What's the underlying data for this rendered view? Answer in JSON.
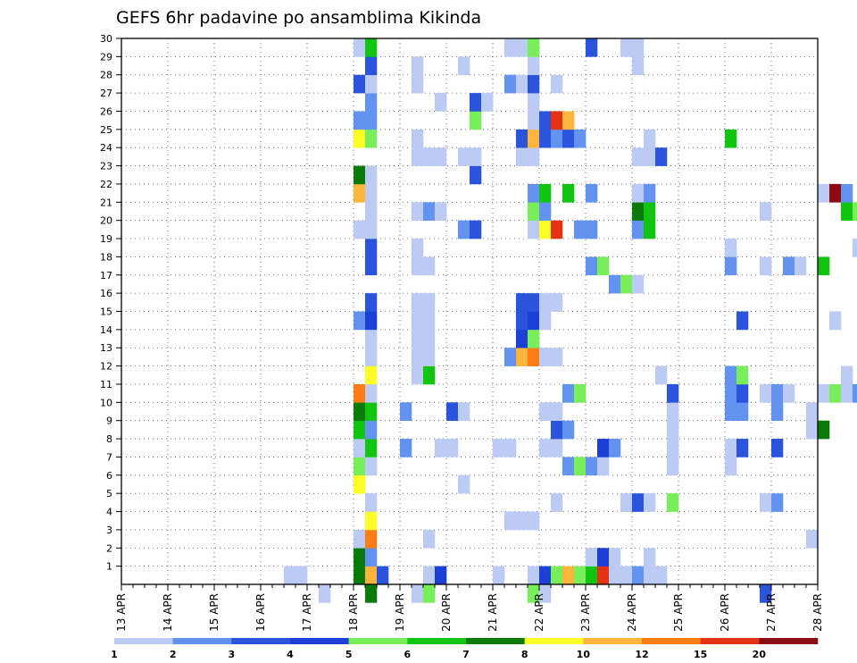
{
  "chart_data": {
    "type": "heatmap",
    "title": "GEFS 6hr padavine po ansamblima Kikinda",
    "x_tick_labels": [
      "13 APR",
      "14 APR",
      "15 APR",
      "16 APR",
      "17 APR",
      "18 APR",
      "19 APR",
      "20 APR",
      "21 APR",
      "22 APR",
      "23 APR",
      "24 APR",
      "25 APR",
      "26 APR",
      "27 APR",
      "28 APR"
    ],
    "y_tick_labels": [
      "1",
      "2",
      "3",
      "4",
      "5",
      "6",
      "7",
      "8",
      "9",
      "10",
      "11",
      "12",
      "13",
      "14",
      "15",
      "16",
      "17",
      "18",
      "19",
      "20",
      "21",
      "22",
      "23",
      "24",
      "25",
      "26",
      "27",
      "28",
      "29",
      "30"
    ],
    "x_range": [
      "13 APR 00",
      "28 APR 00"
    ],
    "time_step_hours": 6,
    "y_range": [
      0,
      30
    ],
    "grid": "dotted",
    "colorbar": {
      "position": "bottom",
      "tick_labels": [
        "1",
        "2",
        "3",
        "4",
        "5",
        "6",
        "7",
        "8",
        "10",
        "12",
        "15",
        "20"
      ],
      "colors": [
        "#bccbf4",
        "#6393f0",
        "#2a54dc",
        "#1c3fd6",
        "#77ee5a",
        "#10c410",
        "#0a7a0a",
        "#ffff28",
        "#ffb43c",
        "#ff7d14",
        "#e63214",
        "#8c0a14"
      ]
    },
    "cells_note": "member, time step index (6-hourly from 13 APR 00), color class index into colorbar.colors",
    "cells": [
      [
        1,
        14,
        0
      ],
      [
        1,
        15,
        0
      ],
      [
        1,
        20,
        6
      ],
      [
        1,
        21,
        8
      ],
      [
        1,
        22,
        2
      ],
      [
        1,
        26,
        0
      ],
      [
        1,
        27,
        3
      ],
      [
        1,
        32,
        0
      ],
      [
        1,
        35,
        0
      ],
      [
        1,
        36,
        3
      ],
      [
        1,
        37,
        4
      ],
      [
        1,
        38,
        8
      ],
      [
        1,
        39,
        4
      ],
      [
        1,
        40,
        5
      ],
      [
        1,
        41,
        10
      ],
      [
        1,
        42,
        0
      ],
      [
        1,
        43,
        0
      ],
      [
        1,
        44,
        1
      ],
      [
        1,
        45,
        0
      ],
      [
        1,
        46,
        0
      ],
      [
        2,
        20,
        6
      ],
      [
        2,
        21,
        1
      ],
      [
        2,
        40,
        0
      ],
      [
        2,
        41,
        3
      ],
      [
        2,
        42,
        0
      ],
      [
        2,
        45,
        0
      ],
      [
        3,
        20,
        0
      ],
      [
        3,
        21,
        9
      ],
      [
        3,
        26,
        0
      ],
      [
        3,
        59,
        0
      ],
      [
        4,
        21,
        7
      ],
      [
        4,
        33,
        0
      ],
      [
        4,
        34,
        0
      ],
      [
        4,
        35,
        0
      ],
      [
        5,
        21,
        0
      ],
      [
        5,
        37,
        0
      ],
      [
        5,
        43,
        0
      ],
      [
        5,
        44,
        2
      ],
      [
        5,
        45,
        0
      ],
      [
        5,
        47,
        4
      ],
      [
        5,
        55,
        0
      ],
      [
        5,
        56,
        1
      ],
      [
        5,
        65,
        2
      ],
      [
        6,
        20,
        7
      ],
      [
        6,
        29,
        0
      ],
      [
        7,
        20,
        4
      ],
      [
        7,
        21,
        0
      ],
      [
        7,
        38,
        1
      ],
      [
        7,
        39,
        4
      ],
      [
        7,
        40,
        1
      ],
      [
        7,
        41,
        0
      ],
      [
        7,
        47,
        0
      ],
      [
        7,
        52,
        0
      ],
      [
        7,
        66,
        6
      ],
      [
        7,
        67,
        9
      ],
      [
        7,
        68,
        4
      ],
      [
        8,
        20,
        0
      ],
      [
        8,
        21,
        5
      ],
      [
        8,
        24,
        1
      ],
      [
        8,
        27,
        0
      ],
      [
        8,
        28,
        0
      ],
      [
        8,
        32,
        0
      ],
      [
        8,
        33,
        0
      ],
      [
        8,
        36,
        0
      ],
      [
        8,
        37,
        0
      ],
      [
        8,
        41,
        3
      ],
      [
        8,
        42,
        1
      ],
      [
        8,
        47,
        0
      ],
      [
        8,
        52,
        0
      ],
      [
        8,
        53,
        2
      ],
      [
        8,
        56,
        2
      ],
      [
        8,
        65,
        4
      ],
      [
        9,
        20,
        5
      ],
      [
        9,
        21,
        1
      ],
      [
        9,
        37,
        2
      ],
      [
        9,
        38,
        1
      ],
      [
        9,
        47,
        0
      ],
      [
        9,
        59,
        0
      ],
      [
        9,
        60,
        6
      ],
      [
        10,
        20,
        6
      ],
      [
        10,
        21,
        5
      ],
      [
        10,
        24,
        1
      ],
      [
        10,
        28,
        2
      ],
      [
        10,
        29,
        0
      ],
      [
        10,
        36,
        0
      ],
      [
        10,
        37,
        0
      ],
      [
        10,
        47,
        0
      ],
      [
        10,
        52,
        1
      ],
      [
        10,
        53,
        1
      ],
      [
        10,
        56,
        1
      ],
      [
        10,
        59,
        0
      ],
      [
        11,
        20,
        9
      ],
      [
        11,
        21,
        0
      ],
      [
        11,
        38,
        1
      ],
      [
        11,
        39,
        4
      ],
      [
        11,
        47,
        2
      ],
      [
        11,
        52,
        1
      ],
      [
        11,
        53,
        2
      ],
      [
        11,
        55,
        0
      ],
      [
        11,
        56,
        1
      ],
      [
        11,
        57,
        0
      ],
      [
        11,
        60,
        0
      ],
      [
        11,
        61,
        4
      ],
      [
        11,
        62,
        0
      ],
      [
        11,
        63,
        1
      ],
      [
        11,
        64,
        5
      ],
      [
        11,
        67,
        1
      ],
      [
        11,
        70,
        4
      ],
      [
        12,
        21,
        7
      ],
      [
        12,
        25,
        0
      ],
      [
        12,
        26,
        5
      ],
      [
        12,
        46,
        0
      ],
      [
        12,
        52,
        1
      ],
      [
        12,
        53,
        4
      ],
      [
        12,
        62,
        0
      ],
      [
        12,
        64,
        2
      ],
      [
        12,
        65,
        2
      ],
      [
        12,
        66,
        0
      ],
      [
        12,
        67,
        1
      ],
      [
        12,
        68,
        0
      ],
      [
        12,
        70,
        1
      ],
      [
        12,
        71,
        4
      ],
      [
        13,
        21,
        0
      ],
      [
        13,
        25,
        0
      ],
      [
        13,
        26,
        0
      ],
      [
        13,
        33,
        1
      ],
      [
        13,
        34,
        8
      ],
      [
        13,
        35,
        9
      ],
      [
        13,
        36,
        0
      ],
      [
        13,
        37,
        0
      ],
      [
        14,
        21,
        0
      ],
      [
        14,
        25,
        0
      ],
      [
        14,
        26,
        0
      ],
      [
        14,
        34,
        3
      ],
      [
        14,
        35,
        4
      ],
      [
        15,
        20,
        1
      ],
      [
        15,
        21,
        3
      ],
      [
        15,
        25,
        0
      ],
      [
        15,
        26,
        0
      ],
      [
        15,
        34,
        2
      ],
      [
        15,
        35,
        3
      ],
      [
        15,
        36,
        0
      ],
      [
        15,
        53,
        2
      ],
      [
        15,
        61,
        0
      ],
      [
        15,
        67,
        1
      ],
      [
        15,
        68,
        1
      ],
      [
        16,
        21,
        2
      ],
      [
        16,
        25,
        0
      ],
      [
        16,
        26,
        0
      ],
      [
        16,
        34,
        2
      ],
      [
        16,
        35,
        2
      ],
      [
        16,
        36,
        0
      ],
      [
        16,
        37,
        0
      ],
      [
        16,
        72,
        9
      ],
      [
        17,
        42,
        1
      ],
      [
        17,
        43,
        4
      ],
      [
        17,
        44,
        0
      ],
      [
        17,
        71,
        0
      ],
      [
        18,
        21,
        2
      ],
      [
        18,
        25,
        0
      ],
      [
        18,
        26,
        0
      ],
      [
        18,
        40,
        1
      ],
      [
        18,
        41,
        4
      ],
      [
        18,
        52,
        1
      ],
      [
        18,
        55,
        0
      ],
      [
        18,
        57,
        1
      ],
      [
        18,
        58,
        0
      ],
      [
        18,
        60,
        5
      ],
      [
        18,
        67,
        0
      ],
      [
        19,
        21,
        2
      ],
      [
        19,
        25,
        0
      ],
      [
        19,
        52,
        0
      ],
      [
        19,
        63,
        0
      ],
      [
        19,
        64,
        2
      ],
      [
        19,
        66,
        1
      ],
      [
        19,
        68,
        10
      ],
      [
        20,
        20,
        0
      ],
      [
        20,
        21,
        0
      ],
      [
        20,
        29,
        1
      ],
      [
        20,
        30,
        2
      ],
      [
        20,
        35,
        0
      ],
      [
        20,
        36,
        7
      ],
      [
        20,
        37,
        10
      ],
      [
        20,
        39,
        1
      ],
      [
        20,
        40,
        1
      ],
      [
        20,
        44,
        1
      ],
      [
        20,
        45,
        5
      ],
      [
        21,
        21,
        0
      ],
      [
        21,
        25,
        0
      ],
      [
        21,
        26,
        1
      ],
      [
        21,
        27,
        0
      ],
      [
        21,
        35,
        4
      ],
      [
        21,
        36,
        1
      ],
      [
        21,
        44,
        6
      ],
      [
        21,
        45,
        5
      ],
      [
        21,
        55,
        0
      ],
      [
        21,
        62,
        5
      ],
      [
        21,
        63,
        4
      ],
      [
        21,
        66,
        0
      ],
      [
        21,
        68,
        0
      ],
      [
        21,
        69,
        1
      ],
      [
        22,
        20,
        8
      ],
      [
        22,
        21,
        0
      ],
      [
        22,
        35,
        1
      ],
      [
        22,
        36,
        5
      ],
      [
        22,
        38,
        5
      ],
      [
        22,
        40,
        1
      ],
      [
        22,
        44,
        0
      ],
      [
        22,
        45,
        1
      ],
      [
        22,
        60,
        0
      ],
      [
        22,
        61,
        11
      ],
      [
        22,
        62,
        1
      ],
      [
        22,
        64,
        0
      ],
      [
        22,
        69,
        0
      ],
      [
        22,
        70,
        0
      ],
      [
        22,
        71,
        0
      ],
      [
        23,
        20,
        6
      ],
      [
        23,
        21,
        0
      ],
      [
        23,
        30,
        2
      ],
      [
        23,
        73,
        0
      ],
      [
        23,
        75,
        8
      ],
      [
        23,
        76,
        1
      ],
      [
        24,
        25,
        0
      ],
      [
        24,
        26,
        0
      ],
      [
        24,
        27,
        0
      ],
      [
        24,
        29,
        0
      ],
      [
        24,
        30,
        0
      ],
      [
        24,
        34,
        0
      ],
      [
        24,
        35,
        0
      ],
      [
        24,
        44,
        0
      ],
      [
        24,
        45,
        0
      ],
      [
        24,
        46,
        2
      ],
      [
        24,
        75,
        1
      ],
      [
        24,
        76,
        1
      ],
      [
        24,
        77,
        0
      ],
      [
        25,
        20,
        7
      ],
      [
        25,
        21,
        4
      ],
      [
        25,
        25,
        0
      ],
      [
        25,
        34,
        2
      ],
      [
        25,
        35,
        8
      ],
      [
        25,
        36,
        2
      ],
      [
        25,
        37,
        1
      ],
      [
        25,
        38,
        2
      ],
      [
        25,
        39,
        1
      ],
      [
        25,
        45,
        0
      ],
      [
        25,
        52,
        5
      ],
      [
        25,
        69,
        1
      ],
      [
        25,
        70,
        1
      ],
      [
        25,
        71,
        1
      ],
      [
        26,
        20,
        1
      ],
      [
        26,
        21,
        1
      ],
      [
        26,
        30,
        4
      ],
      [
        26,
        35,
        0
      ],
      [
        26,
        36,
        2
      ],
      [
        26,
        37,
        10
      ],
      [
        26,
        38,
        8
      ],
      [
        26,
        67,
        1
      ],
      [
        26,
        68,
        2
      ],
      [
        27,
        21,
        1
      ],
      [
        27,
        27,
        0
      ],
      [
        27,
        30,
        2
      ],
      [
        27,
        31,
        0
      ],
      [
        27,
        35,
        0
      ],
      [
        27,
        72,
        0
      ],
      [
        27,
        73,
        9
      ],
      [
        27,
        74,
        2
      ],
      [
        27,
        75,
        4
      ],
      [
        27,
        76,
        1
      ],
      [
        27,
        77,
        2
      ],
      [
        28,
        20,
        2
      ],
      [
        28,
        21,
        0
      ],
      [
        28,
        25,
        0
      ],
      [
        28,
        33,
        1
      ],
      [
        28,
        34,
        0
      ],
      [
        28,
        35,
        2
      ],
      [
        28,
        37,
        0
      ],
      [
        28,
        68,
        2
      ],
      [
        28,
        70,
        6
      ],
      [
        29,
        21,
        2
      ],
      [
        29,
        25,
        0
      ],
      [
        29,
        29,
        0
      ],
      [
        29,
        35,
        0
      ],
      [
        29,
        44,
        0
      ],
      [
        29,
        71,
        6
      ],
      [
        29,
        72,
        1
      ],
      [
        30,
        20,
        0
      ],
      [
        30,
        21,
        5
      ],
      [
        30,
        33,
        0
      ],
      [
        30,
        34,
        0
      ],
      [
        30,
        35,
        4
      ],
      [
        30,
        40,
        2
      ],
      [
        30,
        43,
        0
      ],
      [
        30,
        44,
        0
      ],
      [
        30,
        65,
        0
      ],
      [
        30,
        75,
        2
      ],
      [
        30,
        76,
        0
      ],
      [
        0,
        17,
        0
      ],
      [
        0,
        21,
        6
      ],
      [
        0,
        25,
        0
      ],
      [
        0,
        26,
        4
      ],
      [
        0,
        35,
        4
      ],
      [
        0,
        36,
        0
      ],
      [
        0,
        55,
        2
      ]
    ]
  }
}
